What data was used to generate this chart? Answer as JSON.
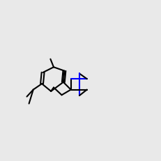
{
  "bg_color": "#e9e9e9",
  "bond_color": "#000000",
  "n_color": "#0000ff",
  "s_color": "#cccc00",
  "o_color": "#ff0000",
  "f_color": "#ff00ff",
  "lw": 1.5,
  "dlw": 0.8
}
